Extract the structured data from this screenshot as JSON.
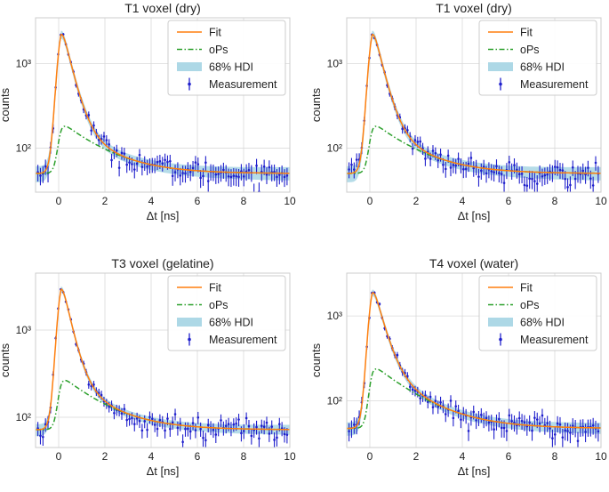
{
  "figure": {
    "panels": [
      {
        "title": "T1 voxel (dry)"
      },
      {
        "title": "T1 voxel (dry)"
      },
      {
        "title": "T3 voxel (gelatine)"
      },
      {
        "title": "T4 voxel (water)"
      }
    ]
  },
  "colors": {
    "fit": "#ff7f0e",
    "ops": "#2ca02c",
    "hdi": "#add8e6",
    "measurement": "#1f1fcc",
    "grid": "#d9d9d9",
    "frame": "#cccccc"
  },
  "chart_data": [
    {
      "type": "line",
      "title": "T1 voxel (dry)",
      "xlabel": "Δt [ns]",
      "ylabel": "counts",
      "xlim": [
        -1,
        10
      ],
      "ylim": [
        30,
        3500
      ],
      "yscale": "log",
      "grid": true,
      "legend": "top-right",
      "xticks": [
        0,
        2,
        4,
        6,
        8,
        10
      ],
      "xtick_labels": [
        "0",
        "2",
        "4",
        "6",
        "8",
        "10"
      ],
      "yticks": [
        100,
        1000
      ],
      "ytick_labels": [
        "10²",
        "10³"
      ],
      "model": {
        "background": 50,
        "peak": 3100,
        "tau_short": 0.35,
        "ops_peak": 205,
        "tau_ops": 1.6,
        "hdi_half_width": 0.18
      },
      "series": [
        {
          "name": "Fit",
          "style": "solid line",
          "color": "#ff7f0e"
        },
        {
          "name": "oPs",
          "style": "dash-dot line",
          "color": "#2ca02c"
        },
        {
          "name": "68% HDI",
          "style": "filled band",
          "color": "#add8e6"
        },
        {
          "name": "Measurement",
          "style": "points with error bars",
          "color": "#1f1fcc"
        }
      ]
    },
    {
      "type": "line",
      "title": "T1 voxel (dry)",
      "xlabel": "Δt [ns]",
      "ylabel": "counts",
      "xlim": [
        -1,
        10
      ],
      "ylim": [
        30,
        3500
      ],
      "yscale": "log",
      "grid": true,
      "legend": "top-right",
      "xticks": [
        0,
        2,
        4,
        6,
        8,
        10
      ],
      "xtick_labels": [
        "0",
        "2",
        "4",
        "6",
        "8",
        "10"
      ],
      "yticks": [
        100,
        1000
      ],
      "ytick_labels": [
        "10²",
        "10³"
      ],
      "model": {
        "background": 50,
        "peak": 3100,
        "tau_short": 0.35,
        "ops_peak": 205,
        "tau_ops": 1.6,
        "hdi_half_width": 0.18
      },
      "series": [
        {
          "name": "Fit",
          "style": "solid line",
          "color": "#ff7f0e"
        },
        {
          "name": "oPs",
          "style": "dash-dot line",
          "color": "#2ca02c"
        },
        {
          "name": "68% HDI",
          "style": "filled band",
          "color": "#add8e6"
        },
        {
          "name": "Measurement",
          "style": "points with error bars",
          "color": "#1f1fcc"
        }
      ]
    },
    {
      "type": "line",
      "title": "T3 voxel (gelatine)",
      "xlabel": "Δt [ns]",
      "ylabel": "counts",
      "xlim": [
        -1,
        10
      ],
      "ylim": [
        45,
        4500
      ],
      "yscale": "log",
      "grid": true,
      "legend": "top-right",
      "xticks": [
        0,
        2,
        4,
        6,
        8,
        10
      ],
      "xtick_labels": [
        "0",
        "2",
        "4",
        "6",
        "8",
        "10"
      ],
      "yticks": [
        100,
        1000
      ],
      "ytick_labels": [
        "10²",
        "10³"
      ],
      "model": {
        "background": 72,
        "peak": 4100,
        "tau_short": 0.33,
        "ops_peak": 300,
        "tau_ops": 1.6,
        "hdi_half_width": 0.13
      },
      "series": [
        {
          "name": "Fit",
          "style": "solid line",
          "color": "#ff7f0e"
        },
        {
          "name": "oPs",
          "style": "dash-dot line",
          "color": "#2ca02c"
        },
        {
          "name": "68% HDI",
          "style": "filled band",
          "color": "#add8e6"
        },
        {
          "name": "Measurement",
          "style": "points with error bars",
          "color": "#1f1fcc"
        }
      ]
    },
    {
      "type": "line",
      "title": "T4 voxel (water)",
      "xlabel": "Δt [ns]",
      "ylabel": "counts",
      "xlim": [
        -1,
        10
      ],
      "ylim": [
        28,
        3200
      ],
      "yscale": "log",
      "grid": true,
      "legend": "top-right",
      "xticks": [
        0,
        2,
        4,
        6,
        8,
        10
      ],
      "xtick_labels": [
        "0",
        "2",
        "4",
        "6",
        "8",
        "10"
      ],
      "yticks": [
        100,
        1000
      ],
      "ytick_labels": [
        "10²",
        "10³"
      ],
      "model": {
        "background": 47,
        "peak": 2600,
        "tau_short": 0.38,
        "ops_peak": 270,
        "tau_ops": 1.7,
        "hdi_half_width": 0.15
      },
      "series": [
        {
          "name": "Fit",
          "style": "solid line",
          "color": "#ff7f0e"
        },
        {
          "name": "oPs",
          "style": "dash-dot line",
          "color": "#2ca02c"
        },
        {
          "name": "68% HDI",
          "style": "filled band",
          "color": "#add8e6"
        },
        {
          "name": "Measurement",
          "style": "points with error bars",
          "color": "#1f1fcc"
        }
      ]
    }
  ]
}
